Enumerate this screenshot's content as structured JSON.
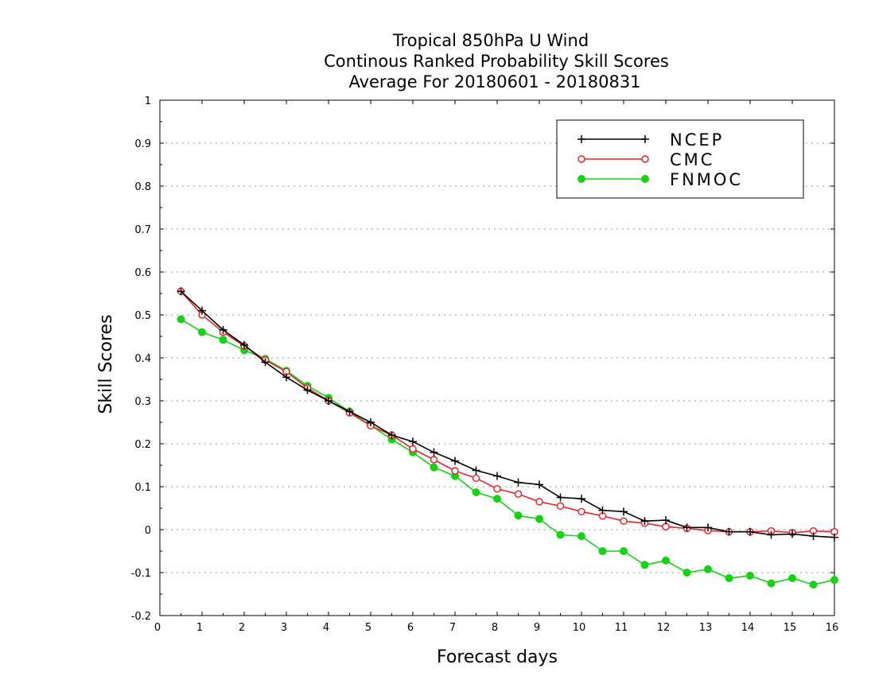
{
  "chart_data": {
    "type": "line",
    "title_lines": [
      "Tropical 850hPa U Wind",
      "Continous Ranked Probability Skill Scores",
      "Average For 20180601 - 20180831"
    ],
    "xlabel": "Forecast days",
    "ylabel": "Skill Scores",
    "xlim": [
      0,
      16
    ],
    "ylim": [
      -0.2,
      1
    ],
    "xticks": [
      0,
      1,
      2,
      3,
      4,
      5,
      6,
      7,
      8,
      9,
      10,
      11,
      12,
      13,
      14,
      15,
      16
    ],
    "xtick_labels": [
      "0",
      "1",
      "2",
      "3",
      "4",
      "5",
      "6",
      "7",
      "8",
      "9",
      "10",
      "11",
      "12",
      "13",
      "14",
      "15",
      "16"
    ],
    "yticks": [
      -0.2,
      -0.1,
      0,
      0.1,
      0.2,
      0.3,
      0.4,
      0.5,
      0.6,
      0.7,
      0.8,
      0.9,
      1
    ],
    "ytick_labels": [
      "-0.2",
      "-0.1",
      "0",
      "0.1",
      "0.2",
      "0.3",
      "0.4",
      "0.5",
      "0.6",
      "0.7",
      "0.8",
      "0.9",
      "1"
    ],
    "grid": "horizontal-dotted",
    "legend_position": "top-right",
    "x": [
      0.5,
      1,
      1.5,
      2,
      2.5,
      3,
      3.5,
      4,
      4.5,
      5,
      5.5,
      6,
      6.5,
      7,
      7.5,
      8,
      8.5,
      9,
      9.5,
      10,
      10.5,
      11,
      11.5,
      12,
      12.5,
      13,
      13.5,
      14,
      14.5,
      15,
      15.5,
      16
    ],
    "series": [
      {
        "name": "NCEP",
        "color": "#000000",
        "marker": "plus",
        "values": [
          0.555,
          0.51,
          0.465,
          0.43,
          0.39,
          0.355,
          0.325,
          0.3,
          0.275,
          0.25,
          0.22,
          0.205,
          0.18,
          0.16,
          0.138,
          0.125,
          0.11,
          0.105,
          0.075,
          0.072,
          0.045,
          0.042,
          0.02,
          0.022,
          0.005,
          0.005,
          -0.005,
          -0.005,
          -0.012,
          -0.01,
          -0.015,
          -0.018
        ]
      },
      {
        "name": "CMC",
        "color": "#e8262b",
        "marker": "open-circle",
        "values": [
          0.555,
          0.5,
          0.46,
          0.428,
          0.395,
          0.368,
          0.33,
          0.3,
          0.272,
          0.242,
          0.22,
          0.188,
          0.163,
          0.137,
          0.12,
          0.095,
          0.083,
          0.065,
          0.055,
          0.042,
          0.032,
          0.02,
          0.015,
          0.007,
          0.003,
          -0.002,
          -0.005,
          -0.005,
          -0.003,
          -0.007,
          -0.003,
          -0.005
        ]
      },
      {
        "name": "FNMOC",
        "color": "#13d313",
        "marker": "filled-circle",
        "values": [
          0.49,
          0.46,
          0.442,
          0.418,
          0.398,
          0.37,
          0.335,
          0.307,
          0.275,
          0.243,
          0.21,
          0.18,
          0.145,
          0.125,
          0.087,
          0.072,
          0.033,
          0.025,
          -0.012,
          -0.015,
          -0.05,
          -0.05,
          -0.082,
          -0.072,
          -0.1,
          -0.092,
          -0.113,
          -0.107,
          -0.125,
          -0.113,
          -0.128,
          -0.117
        ]
      }
    ]
  }
}
